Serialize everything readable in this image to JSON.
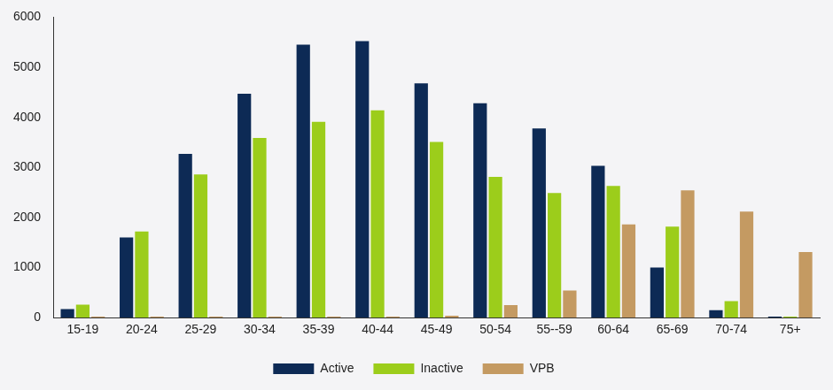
{
  "chart_data": {
    "type": "bar",
    "categories": [
      "15-19",
      "20-24",
      "25-29",
      "30-34",
      "35-39",
      "40-44",
      "45-49",
      "50-54",
      "55--59",
      "60-64",
      "65-69",
      "70-74",
      "75+"
    ],
    "series": [
      {
        "name": "Active",
        "color": "#0d2a55",
        "values": [
          170,
          1600,
          3270,
          4470,
          5450,
          5520,
          4680,
          4280,
          3780,
          3030,
          1000,
          150,
          20
        ]
      },
      {
        "name": "Inactive",
        "color": "#9ccd1b",
        "values": [
          260,
          1720,
          2860,
          3590,
          3910,
          4140,
          3510,
          2810,
          2490,
          2630,
          1820,
          330,
          20
        ]
      },
      {
        "name": "VPB",
        "color": "#c49a62",
        "values": [
          20,
          20,
          20,
          20,
          20,
          20,
          40,
          250,
          540,
          1860,
          2540,
          2120,
          1310
        ]
      }
    ],
    "ylim": [
      0,
      6000
    ],
    "yticks": [
      0,
      1000,
      2000,
      3000,
      4000,
      5000,
      6000
    ],
    "grid": false,
    "legend": "bottom"
  }
}
